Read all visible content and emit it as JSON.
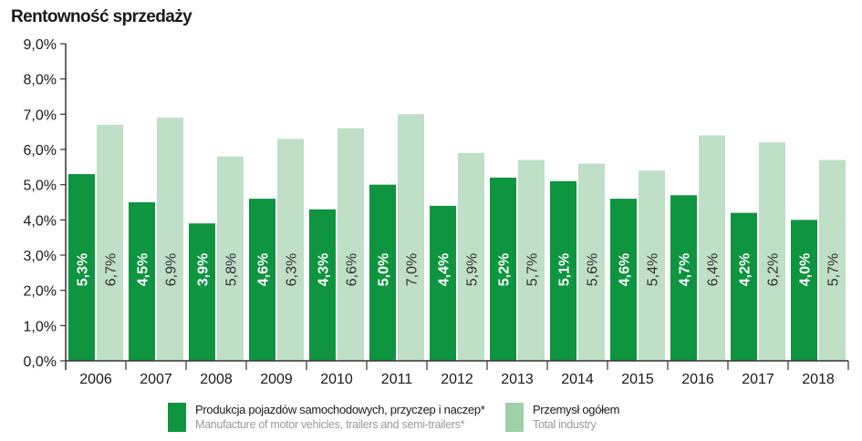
{
  "title": "Rentowność sprzedaży",
  "colors": {
    "series1": "#0f9440",
    "series2": "#bfdfc6",
    "axis": "#333333",
    "label_on_dark": "#ffffff",
    "label_on_light": "#333333"
  },
  "legend": [
    {
      "label": "Produkcja pojazdów samochodowych, przyczep i naczep*",
      "sublabel": "Manufacture of motor vehicles, trailers and semi-trailers*"
    },
    {
      "label": "Przemysł ogółem",
      "sublabel": "Total industry"
    }
  ],
  "chart_data": {
    "type": "bar",
    "title": "Rentowność sprzedaży",
    "categories": [
      "2006",
      "2007",
      "2008",
      "2009",
      "2010",
      "2011",
      "2012",
      "2013",
      "2014",
      "2015",
      "2016",
      "2017",
      "2018"
    ],
    "y_ticks": [
      "0,0%",
      "1,0%",
      "2,0%",
      "3,0%",
      "4,0%",
      "5,0%",
      "6,0%",
      "7,0%",
      "8,0%",
      "9,0%"
    ],
    "ylim": [
      0,
      9
    ],
    "grid": false,
    "legend_position": "bottom",
    "series": [
      {
        "name": "Produkcja pojazdów samochodowych, przyczep i naczep*",
        "values": [
          5.3,
          4.5,
          3.9,
          4.6,
          4.3,
          5.0,
          4.4,
          5.2,
          5.1,
          4.6,
          4.7,
          4.2,
          4.0
        ],
        "labels": [
          "5,3%",
          "4,5%",
          "3,9%",
          "4,6%",
          "4,3%",
          "5,0%",
          "4,4%",
          "5,2%",
          "5,1%",
          "4,6%",
          "4,7%",
          "4,2%",
          "4,0%"
        ]
      },
      {
        "name": "Przemysł ogółem",
        "values": [
          6.7,
          6.9,
          5.8,
          6.3,
          6.6,
          7.0,
          5.9,
          5.7,
          5.6,
          5.4,
          6.4,
          6.2,
          5.7
        ],
        "labels": [
          "6,7%",
          "6,9%",
          "5,8%",
          "6,3%",
          "6,6%",
          "7,0%",
          "5,9%",
          "5,7%",
          "5,6%",
          "5,4%",
          "6,4%",
          "6,2%",
          "5,7%"
        ]
      }
    ]
  }
}
